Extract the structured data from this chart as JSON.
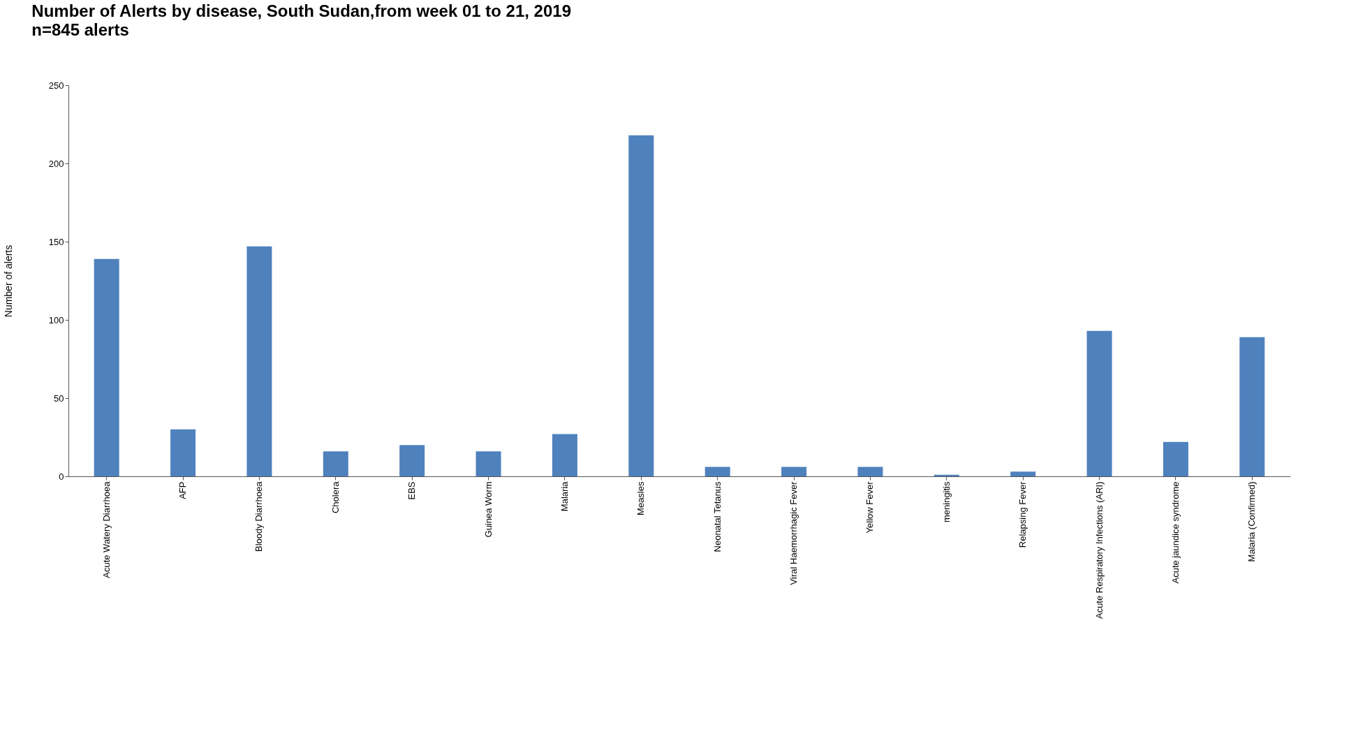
{
  "chart_data": {
    "type": "bar",
    "title": "Number of Alerts by disease, South Sudan,from  week 01 to 21, 2019",
    "subtitle": "n=845 alerts",
    "ylabel": "Number of alerts",
    "categories": [
      "Acute Watery Diarrhoea",
      "AFP",
      "Bloody Diarrhoea",
      "Cholera",
      "EBS",
      "Guinea Worm",
      "Malaria",
      "Measles",
      "Neonatal Tetanus",
      "Viral Haemorrhagic Fever",
      "Yellow Fever",
      "meningitis",
      "Relapsing Fever",
      "Acute Respiratory Infections (ARI)",
      "Acute jaundice syndrome",
      "Malaria (Confirmed)"
    ],
    "values": [
      139,
      30,
      147,
      16,
      20,
      16,
      27,
      218,
      6,
      6,
      6,
      1,
      3,
      93,
      22,
      89
    ],
    "color": "#4f81bd",
    "ylim": [
      0,
      250
    ],
    "yticks": [
      0,
      50,
      100,
      150,
      200,
      250
    ],
    "grid": false
  }
}
